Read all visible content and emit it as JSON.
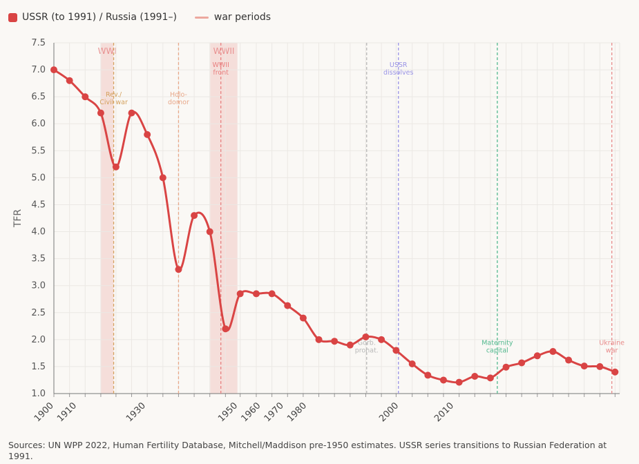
{
  "legend": {
    "series_label": "USSR (to 1991) / Russia (1991–)",
    "war_label": "war periods"
  },
  "colors": {
    "series": "#d94444",
    "war_band": "#f0c8c2",
    "war_legend": "#eca89e",
    "grid": "#ebe8e4"
  },
  "source": "Sources: UN WPP 2022, Human Fertility Database, Mitchell/Maddison pre-1950 estimates. USSR series transitions to Russian Federation at 1991.",
  "chart_data": {
    "type": "line",
    "title": "",
    "xlabel": "",
    "ylabel": "TFR",
    "xlim": [
      1900,
      2023
    ],
    "ylim": [
      1.0,
      7.5
    ],
    "yticks": [
      "1.0",
      "1.5",
      "2.0",
      "2.5",
      "3.0",
      "3.5",
      "4.0",
      "4.5",
      "5.0",
      "5.5",
      "6.0",
      "6.5",
      "7.0",
      "7.5"
    ],
    "xtick_labels": [
      {
        "label": "1900",
        "x": 1900
      },
      {
        "label": "1910",
        "x": 1905
      },
      {
        "label": "1930",
        "x": 1920
      },
      {
        "label": "1950",
        "x": 1940
      },
      {
        "label": "1960",
        "x": 1945
      },
      {
        "label": "1970",
        "x": 1950
      },
      {
        "label": "1980",
        "x": 1955
      },
      {
        "label": "2000",
        "x": 1975
      },
      {
        "label": "2010",
        "x": 1987
      }
    ],
    "series": [
      {
        "name": "USSR (to 1991) / Russia (1991–)",
        "x": [
          1900,
          1903.4,
          1906.8,
          1910.2,
          1913.5,
          1916.9,
          1920.3,
          1923.7,
          1927.1,
          1930.5,
          1933.9,
          1937.3,
          1940.5,
          1944,
          1947.4,
          1950.8,
          1954.2,
          1957.6,
          1961,
          1964.4,
          1967.8,
          1971.2,
          1974.4,
          1977.9,
          1981.3,
          1984.7,
          1988.1,
          1991.5,
          1994.9,
          1998.3,
          2001.7,
          2005.1,
          2008.5,
          2011.9,
          2015.3,
          2018.7,
          2022
        ],
        "values": [
          7.0,
          6.8,
          6.5,
          6.2,
          5.2,
          6.2,
          5.8,
          5.0,
          3.3,
          4.3,
          4.0,
          2.2,
          2.85,
          2.85,
          2.85,
          2.63,
          2.4,
          2.0,
          1.97,
          1.9,
          2.05,
          2.0,
          1.8,
          1.55,
          1.34,
          1.25,
          1.21,
          1.32,
          1.29,
          1.49,
          1.57,
          1.7,
          1.78,
          1.62,
          1.51,
          1.5,
          1.4
        ]
      }
    ],
    "war_bands": [
      {
        "label": "WWI",
        "x0": 1910.2,
        "x1": 1913.0
      },
      {
        "label": "WWII",
        "x0": 1934.0,
        "x1": 1939.9
      }
    ],
    "events": [
      {
        "lines": [
          "Rev./",
          "Civil war"
        ],
        "x": 1913.0,
        "color": "#d4a15e",
        "label_y": 6.5
      },
      {
        "lines": [
          "Holo-",
          "domor"
        ],
        "x": 1927.1,
        "color": "#e8a88a",
        "label_y": 6.5
      },
      {
        "lines": [
          "WWII",
          "front"
        ],
        "x": 1936.3,
        "color": "#e88080",
        "label_y": 7.05
      },
      {
        "lines": [
          "Gorb.",
          "pronat."
        ],
        "x": 1968.0,
        "color": "#b8b8b8",
        "label_y": 1.9
      },
      {
        "lines": [
          "USSR",
          "dissolves"
        ],
        "x": 1974.9,
        "color": "#9a94e6",
        "label_y": 7.05
      },
      {
        "lines": [
          "Maternity",
          "capital"
        ],
        "x": 1996.4,
        "color": "#52b88e",
        "label_y": 1.9
      },
      {
        "lines": [
          "Ukraine",
          "war"
        ],
        "x": 2021.3,
        "color": "#e88a8a",
        "label_y": 1.9
      }
    ]
  }
}
